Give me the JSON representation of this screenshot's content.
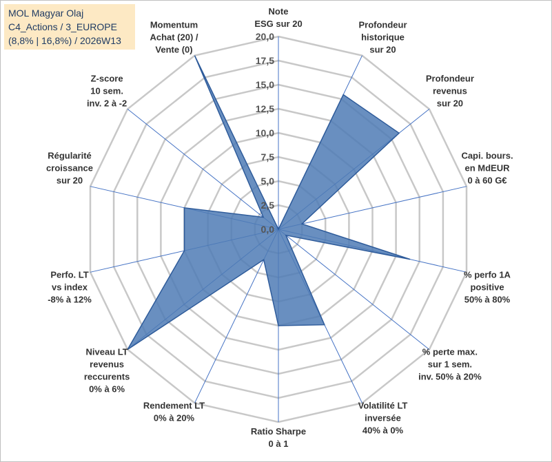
{
  "title_box": {
    "line1": "MOL Magyar Olaj",
    "line2": "C4_Actions / 3_EUROPE",
    "line3": "(8,8% | 16,8%) / 2026W13"
  },
  "colors": {
    "grid": "#c8c8c8",
    "spoke": "#4472c4",
    "fill": "#4f7bb5",
    "stroke": "#2e5b9a",
    "title_bg": "#fde9c4"
  },
  "chart_data": {
    "type": "radar",
    "title": "MOL Magyar Olaj",
    "rlim": [
      0,
      20
    ],
    "tick_labels": [
      "0,0",
      "2,5",
      "5,0",
      "7,5",
      "10,0",
      "12,5",
      "15,0",
      "17,5",
      "20,0"
    ],
    "axes": [
      {
        "label": [
          "Note",
          "ESG sur 20"
        ],
        "value": 0
      },
      {
        "label": [
          "Profondeur",
          "historique",
          "sur 20"
        ],
        "value": 15.5
      },
      {
        "label": [
          "Profondeur",
          "revenus",
          "sur 20"
        ],
        "value": 16.0
      },
      {
        "label": [
          "Capi. bours.",
          "en MdEUR",
          "0 à 60 G€"
        ],
        "value": 2.5
      },
      {
        "label": [
          "% perfo 1A",
          "positive",
          "50% à 80%"
        ],
        "value": 14.0
      },
      {
        "label": [
          "% perte max.",
          "sur 1 sem.",
          "inv. 50% à 20%"
        ],
        "value": 1.0
      },
      {
        "label": [
          "Volatilité LT",
          "inversée",
          "40% à 0%"
        ],
        "value": 11.0
      },
      {
        "label": [
          "Ratio Sharpe",
          "0 à 1"
        ],
        "value": 10.0
      },
      {
        "label": [
          "Rendement LT",
          "0% à 20%"
        ],
        "value": 3.5
      },
      {
        "label": [
          "Niveau LT",
          "revenus",
          "reccurents",
          "0% à 6%"
        ],
        "value": 20.0
      },
      {
        "label": [
          "Perfo. LT",
          "vs index",
          "-8% à 12%"
        ],
        "value": 10.0
      },
      {
        "label": [
          "Régularité",
          "croissance",
          "sur 20"
        ],
        "value": 10.0
      },
      {
        "label": [
          "Z-score",
          "10 sem.",
          "inv. 2 à -2"
        ],
        "value": 2.0
      },
      {
        "label": [
          "Momentum",
          "Achat (20) /",
          "Vente (0)"
        ],
        "value": 20.0
      }
    ]
  }
}
